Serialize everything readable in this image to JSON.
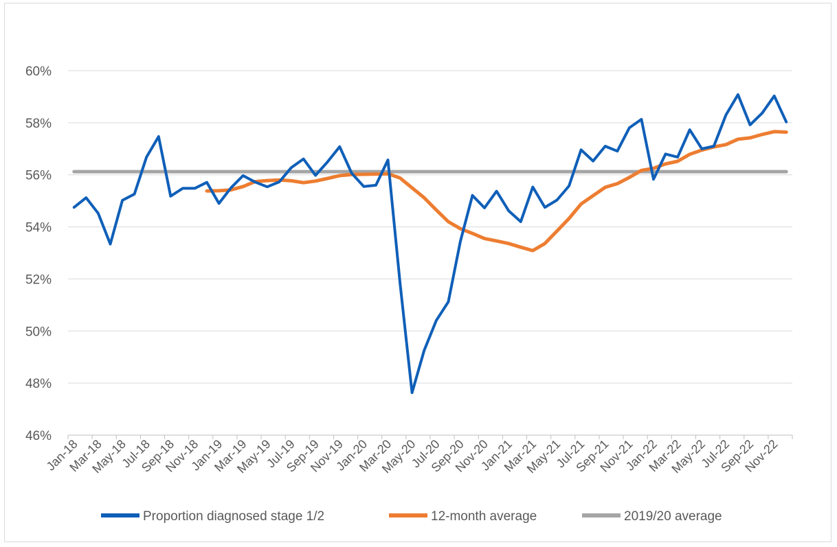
{
  "chart_data": {
    "type": "line",
    "title": "",
    "xlabel": "",
    "ylabel": "",
    "ylim": [
      0.46,
      0.6
    ],
    "y_ticks": [
      "46%",
      "48%",
      "50%",
      "52%",
      "54%",
      "56%",
      "58%",
      "60%"
    ],
    "grid": true,
    "legend_position": "bottom",
    "x": [
      "Jan-18",
      "Feb-18",
      "Mar-18",
      "Apr-18",
      "May-18",
      "Jun-18",
      "Jul-18",
      "Aug-18",
      "Sep-18",
      "Oct-18",
      "Nov-18",
      "Dec-18",
      "Jan-19",
      "Feb-19",
      "Mar-19",
      "Apr-19",
      "May-19",
      "Jun-19",
      "Jul-19",
      "Aug-19",
      "Sep-19",
      "Oct-19",
      "Nov-19",
      "Dec-19",
      "Jan-20",
      "Feb-20",
      "Mar-20",
      "Apr-20",
      "May-20",
      "Jun-20",
      "Jul-20",
      "Aug-20",
      "Sep-20",
      "Oct-20",
      "Nov-20",
      "Dec-20",
      "Jan-21",
      "Feb-21",
      "Mar-21",
      "Apr-21",
      "May-21",
      "Jun-21",
      "Jul-21",
      "Aug-21",
      "Sep-21",
      "Oct-21",
      "Nov-21",
      "Dec-21",
      "Jan-22",
      "Feb-22",
      "Mar-22",
      "Apr-22",
      "May-22",
      "Jun-22",
      "Jul-22",
      "Aug-22",
      "Sep-22",
      "Oct-22",
      "Nov-22",
      "Dec-22"
    ],
    "x_tick_labels": [
      "Jan-18",
      "Mar-18",
      "May-18",
      "Jul-18",
      "Sep-18",
      "Nov-18",
      "Jan-19",
      "Mar-19",
      "May-19",
      "Jul-19",
      "Sep-19",
      "Nov-19",
      "Jan-20",
      "Mar-20",
      "May-20",
      "Jul-20",
      "Sep-20",
      "Nov-20",
      "Jan-21",
      "Mar-21",
      "May-21",
      "Jul-21",
      "Sep-21",
      "Nov-21",
      "Jan-22",
      "Mar-22",
      "May-22",
      "Jul-22",
      "Sep-22",
      "Nov-22"
    ],
    "series": [
      {
        "name": "Proportion diagnosed stage 1/2",
        "color": "#0f5fb8",
        "values": [
          0.5475,
          0.5512,
          0.5452,
          0.5334,
          0.5502,
          0.5526,
          0.5668,
          0.5747,
          0.5518,
          0.5548,
          0.5548,
          0.5571,
          0.549,
          0.555,
          0.5597,
          0.5572,
          0.5554,
          0.5573,
          0.5628,
          0.5661,
          0.5598,
          0.565,
          0.5708,
          0.5606,
          0.5555,
          0.556,
          0.5657,
          0.5185,
          0.4763,
          0.4925,
          0.504,
          0.5112,
          0.5344,
          0.5521,
          0.5473,
          0.5537,
          0.5462,
          0.542,
          0.5553,
          0.5475,
          0.5503,
          0.5557,
          0.5696,
          0.5653,
          0.571,
          0.5691,
          0.5781,
          0.5813,
          0.5583,
          0.568,
          0.5668,
          0.5773,
          0.57,
          0.571,
          0.583,
          0.5908,
          0.5792,
          0.5837,
          0.5903,
          0.5803
        ]
      },
      {
        "name": "12-month average",
        "color": "#ed7d31",
        "values": [
          null,
          null,
          null,
          null,
          null,
          null,
          null,
          null,
          null,
          null,
          null,
          0.5538,
          0.5539,
          0.5542,
          0.5555,
          0.5574,
          0.5578,
          0.558,
          0.5577,
          0.557,
          0.5576,
          0.5586,
          0.5597,
          0.5601,
          0.5602,
          0.5603,
          0.5604,
          0.5588,
          0.555,
          0.5512,
          0.5465,
          0.542,
          0.5393,
          0.5375,
          0.5355,
          0.5346,
          0.5336,
          0.5322,
          0.5309,
          0.5336,
          0.5384,
          0.5432,
          0.5488,
          0.552,
          0.5552,
          0.5566,
          0.559,
          0.5617,
          0.5625,
          0.5642,
          0.5652,
          0.5679,
          0.5695,
          0.5707,
          0.5716,
          0.5737,
          0.5742,
          0.5755,
          0.5766,
          0.5764
        ]
      },
      {
        "name": "2019/20 average",
        "color": "#a5a5a5",
        "values_constant": 0.5612
      }
    ]
  }
}
